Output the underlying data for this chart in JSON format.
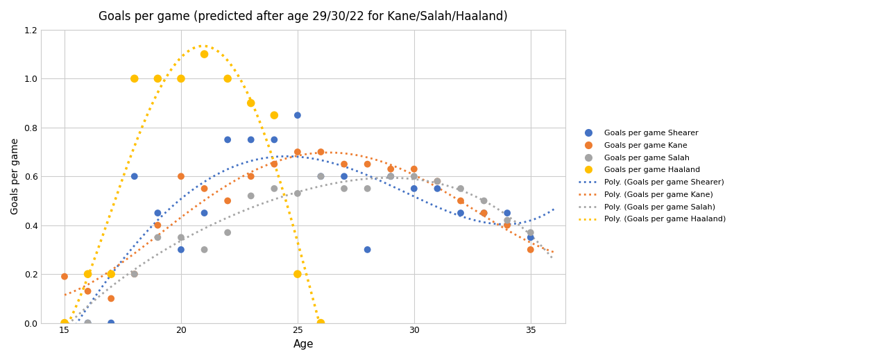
{
  "title": "Goals per game (predicted after age 29/30/22 for Kane/Salah/Haaland)",
  "xlabel": "Age",
  "ylabel": "Goals per game",
  "xlim": [
    14.0,
    36.5
  ],
  "ylim": [
    0,
    1.2
  ],
  "yticks": [
    0,
    0.2,
    0.4,
    0.6,
    0.8,
    1.0,
    1.2
  ],
  "xticks": [
    15,
    20,
    25,
    30,
    35
  ],
  "bg_color": "#ffffff",
  "plot_bg": "#ffffff",
  "shearer_color": "#4472C4",
  "kane_color": "#ED7D31",
  "salah_color": "#A5A5A5",
  "haaland_color": "#FFC000",
  "shearer_dots": {
    "ages": [
      15,
      16,
      17,
      18,
      19,
      20,
      21,
      22,
      23,
      24,
      25,
      26,
      27,
      28,
      29,
      30,
      31,
      32,
      33,
      34,
      35
    ],
    "goals": [
      0.0,
      0.0,
      0.0,
      0.6,
      0.45,
      0.3,
      0.45,
      0.75,
      0.75,
      0.75,
      0.85,
      0.6,
      0.6,
      0.3,
      0.6,
      0.55,
      0.55,
      0.45,
      0.45,
      0.45,
      0.35
    ]
  },
  "kane_dots": {
    "ages": [
      15,
      16,
      17,
      18,
      19,
      20,
      21,
      22,
      23,
      24,
      25,
      26,
      27,
      28,
      29,
      30,
      31,
      32,
      33,
      34,
      35
    ],
    "goals": [
      0.19,
      0.13,
      0.1,
      0.2,
      0.4,
      0.6,
      0.55,
      0.5,
      0.6,
      0.65,
      0.7,
      0.7,
      0.65,
      0.65,
      0.63,
      0.63,
      0.58,
      0.5,
      0.45,
      0.4,
      0.3
    ]
  },
  "salah_dots": {
    "ages": [
      15,
      16,
      17,
      18,
      19,
      20,
      21,
      22,
      23,
      24,
      25,
      26,
      27,
      28,
      29,
      30,
      31,
      32,
      33,
      34,
      35
    ],
    "goals": [
      0.0,
      0.0,
      0.2,
      0.2,
      0.35,
      0.35,
      0.3,
      0.37,
      0.52,
      0.55,
      0.53,
      0.6,
      0.55,
      0.55,
      0.6,
      0.6,
      0.58,
      0.55,
      0.5,
      0.42,
      0.37
    ]
  },
  "haaland_dots": {
    "ages": [
      15,
      16,
      17,
      18,
      19,
      20,
      21,
      22,
      23,
      24,
      25,
      26
    ],
    "goals": [
      0.0,
      0.2,
      0.2,
      1.0,
      1.0,
      1.0,
      1.1,
      1.0,
      0.9,
      0.85,
      0.2,
      0.0
    ]
  },
  "legend_labels": [
    "Goals per game Shearer",
    "Goals per game Kane",
    "Goals per game Salah",
    "Goals per game Haaland",
    "Poly. (Goals per game Shearer)",
    "Poly. (Goals per game Kane)",
    "Poly. (Goals per game Salah)",
    "Poly. (Goals per game Haaland)"
  ]
}
